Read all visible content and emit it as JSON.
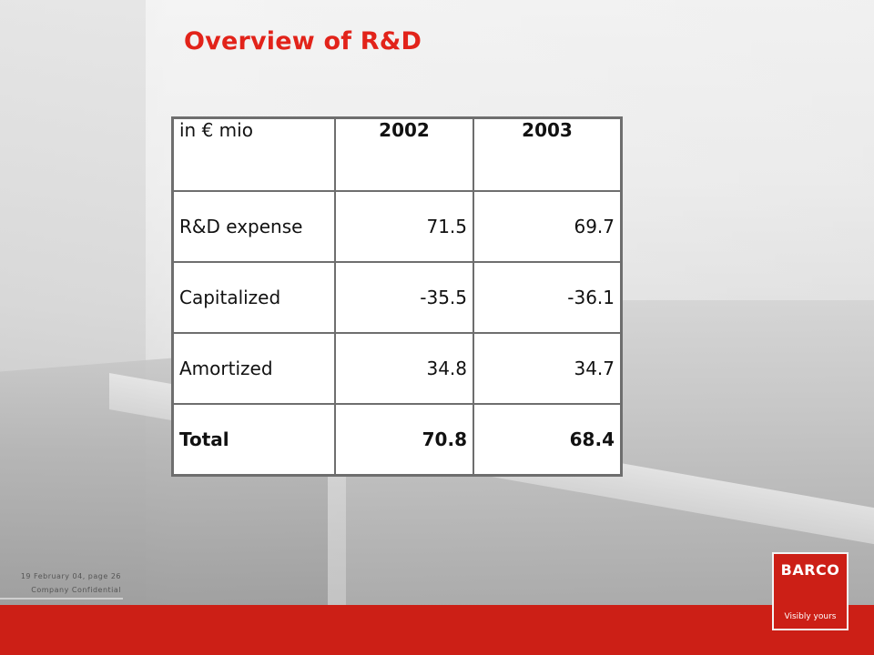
{
  "slide": {
    "title": "Overview of R&D"
  },
  "table": {
    "unit_label": "in € mio",
    "years": [
      "2002",
      "2003"
    ],
    "rows": [
      {
        "label": "R&D expense",
        "values": [
          "71.5",
          "69.7"
        ]
      },
      {
        "label": "Capitalized",
        "values": [
          "-35.5",
          "-36.1"
        ]
      },
      {
        "label": "Amortized",
        "values": [
          "34.8",
          "34.7"
        ]
      },
      {
        "label": "Total",
        "values": [
          "70.8",
          "68.4"
        ]
      }
    ]
  },
  "footer": {
    "date_page": "19 February 04, page 26",
    "confidential": "Company Confidential"
  },
  "logo": {
    "brand": "BARCO",
    "tagline": "Visibly yours"
  },
  "colors": {
    "accent_red": "#e2231a",
    "bar_red": "#cc1f16"
  }
}
